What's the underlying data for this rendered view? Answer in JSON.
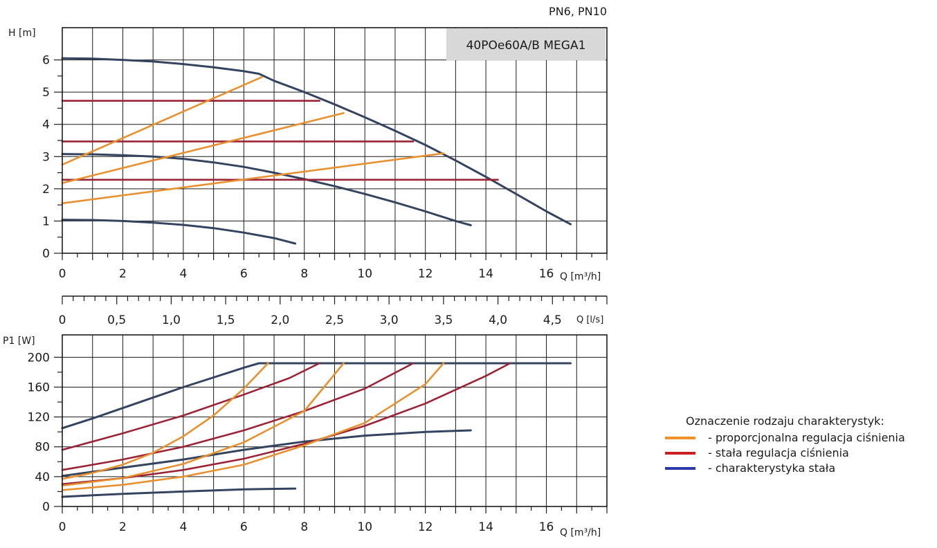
{
  "header": {
    "pressure_class": "PN6, PN10",
    "model": "40POe60A/B MEGA1"
  },
  "colors": {
    "proportional": "#e8902e",
    "constant_pressure": "#9b2335",
    "constant_speed": "#34445e",
    "legend_proportional": "#f0902a",
    "legend_constant_pressure": "#cc1f1f",
    "legend_constant_speed": "#2a3aa8",
    "grid": "#1a1a1a",
    "model_box": "#d8d8d8"
  },
  "legend": {
    "title": "Oznaczenie rodzaju charakterystyk:",
    "items": [
      {
        "key": "proportional",
        "label": "- proporcjonalna regulacja ciśnienia"
      },
      {
        "key": "constant_pressure",
        "label": "- stała regulacja ciśnienia"
      },
      {
        "key": "constant_speed",
        "label": "- charakterystyka stała"
      }
    ]
  },
  "chart_data": [
    {
      "type": "line",
      "title": "",
      "xlabel": "Q [m³/h]",
      "ylabel": "H [m]",
      "xlim": [
        0,
        18
      ],
      "ylim": [
        0,
        7
      ],
      "x_ticks": [
        "0",
        "2",
        "4",
        "6",
        "8",
        "10",
        "12",
        "14",
        "16"
      ],
      "y_ticks": [
        "0",
        "1",
        "2",
        "3",
        "4",
        "5",
        "6"
      ],
      "grid": true,
      "series": [
        {
          "kind": "constant_speed",
          "points": [
            [
              0,
              6.05
            ],
            [
              1,
              6.04
            ],
            [
              2,
              6.0
            ],
            [
              3,
              5.95
            ],
            [
              4,
              5.87
            ],
            [
              5,
              5.77
            ],
            [
              6,
              5.65
            ],
            [
              6.5,
              5.57
            ],
            [
              7,
              5.35
            ],
            [
              8,
              5.0
            ],
            [
              9,
              4.62
            ],
            [
              10,
              4.22
            ],
            [
              11,
              3.8
            ],
            [
              12,
              3.36
            ],
            [
              13,
              2.88
            ],
            [
              14,
              2.37
            ],
            [
              15,
              1.84
            ],
            [
              16,
              1.3
            ],
            [
              16.8,
              0.9
            ]
          ]
        },
        {
          "kind": "constant_speed",
          "points": [
            [
              0,
              3.08
            ],
            [
              1,
              3.07
            ],
            [
              2,
              3.04
            ],
            [
              3,
              3.0
            ],
            [
              4,
              2.93
            ],
            [
              5,
              2.82
            ],
            [
              6,
              2.68
            ],
            [
              7,
              2.5
            ],
            [
              8,
              2.3
            ],
            [
              9,
              2.08
            ],
            [
              10,
              1.84
            ],
            [
              11,
              1.58
            ],
            [
              12,
              1.3
            ],
            [
              13,
              1.0
            ],
            [
              13.5,
              0.87
            ]
          ]
        },
        {
          "kind": "constant_speed",
          "points": [
            [
              0,
              1.04
            ],
            [
              1,
              1.03
            ],
            [
              2,
              1.0
            ],
            [
              3,
              0.95
            ],
            [
              4,
              0.88
            ],
            [
              5,
              0.78
            ],
            [
              6,
              0.64
            ],
            [
              7,
              0.47
            ],
            [
              7.7,
              0.3
            ]
          ]
        },
        {
          "kind": "constant_pressure",
          "points": [
            [
              0,
              4.73
            ],
            [
              8.5,
              4.73
            ]
          ]
        },
        {
          "kind": "constant_pressure",
          "points": [
            [
              0,
              3.47
            ],
            [
              11.6,
              3.47
            ]
          ]
        },
        {
          "kind": "constant_pressure",
          "points": [
            [
              0,
              2.28
            ],
            [
              14.4,
              2.28
            ]
          ]
        },
        {
          "kind": "proportional",
          "points": [
            [
              0,
              2.75
            ],
            [
              6.6,
              5.47
            ]
          ]
        },
        {
          "kind": "proportional",
          "points": [
            [
              0,
              2.18
            ],
            [
              9.3,
              4.35
            ]
          ]
        },
        {
          "kind": "proportional",
          "points": [
            [
              0,
              1.55
            ],
            [
              12.6,
              3.1
            ]
          ]
        }
      ]
    },
    {
      "type": "axis",
      "xlabel": "Q [l/s]",
      "xlim": [
        0,
        5
      ],
      "x_ticks": [
        "0",
        "0,5",
        "1,0",
        "1,5",
        "2,0",
        "2,5",
        "3,0",
        "3,5",
        "4,0",
        "4,5"
      ]
    },
    {
      "type": "line",
      "title": "",
      "xlabel": "Q [m³/h]",
      "ylabel": "P1 [W]",
      "xlim": [
        0,
        18
      ],
      "ylim": [
        0,
        230
      ],
      "x_ticks": [
        "0",
        "2",
        "4",
        "6",
        "8",
        "10",
        "12",
        "14",
        "16"
      ],
      "y_ticks": [
        "0",
        "40",
        "80",
        "120",
        "160",
        "200"
      ],
      "grid": true,
      "series": [
        {
          "kind": "constant_speed",
          "points": [
            [
              0,
              105
            ],
            [
              1,
              118
            ],
            [
              2,
              132
            ],
            [
              3,
              146
            ],
            [
              4,
              160
            ],
            [
              5,
              173
            ],
            [
              6,
              186
            ],
            [
              6.5,
              192
            ],
            [
              16.8,
              192
            ]
          ]
        },
        {
          "kind": "constant_speed",
          "points": [
            [
              0,
              41
            ],
            [
              2,
              52
            ],
            [
              4,
              63
            ],
            [
              6,
              76
            ],
            [
              8,
              87
            ],
            [
              10,
              95
            ],
            [
              12,
              100
            ],
            [
              13.5,
              102
            ]
          ]
        },
        {
          "kind": "constant_speed",
          "points": [
            [
              0,
              13
            ],
            [
              2,
              17
            ],
            [
              4,
              20
            ],
            [
              6,
              23
            ],
            [
              7.7,
              24
            ]
          ]
        },
        {
          "kind": "constant_pressure",
          "points": [
            [
              0,
              76
            ],
            [
              2,
              98
            ],
            [
              4,
              122
            ],
            [
              6,
              150
            ],
            [
              7.5,
              172
            ],
            [
              8.5,
              192
            ]
          ]
        },
        {
          "kind": "constant_pressure",
          "points": [
            [
              0,
              49
            ],
            [
              2,
              63
            ],
            [
              4,
              80
            ],
            [
              6,
              102
            ],
            [
              8,
              128
            ],
            [
              10,
              158
            ],
            [
              11.6,
              192
            ]
          ]
        },
        {
          "kind": "constant_pressure",
          "points": [
            [
              0,
              30
            ],
            [
              2,
              38
            ],
            [
              4,
              49
            ],
            [
              6,
              64
            ],
            [
              8,
              84
            ],
            [
              10,
              108
            ],
            [
              12,
              138
            ],
            [
              14,
              175
            ],
            [
              14.8,
              192
            ]
          ]
        },
        {
          "kind": "proportional",
          "points": [
            [
              0,
              37
            ],
            [
              1,
              45
            ],
            [
              2,
              56
            ],
            [
              3,
              72
            ],
            [
              4,
              94
            ],
            [
              5,
              122
            ],
            [
              6,
              158
            ],
            [
              6.8,
              192
            ]
          ]
        },
        {
          "kind": "proportional",
          "points": [
            [
              0,
              28
            ],
            [
              2,
              38
            ],
            [
              4,
              57
            ],
            [
              6,
              86
            ],
            [
              8,
              128
            ],
            [
              9.3,
              192
            ]
          ]
        },
        {
          "kind": "proportional",
          "points": [
            [
              0,
              22
            ],
            [
              2,
              29
            ],
            [
              4,
              40
            ],
            [
              6,
              56
            ],
            [
              8,
              82
            ],
            [
              10,
              112
            ],
            [
              12,
              164
            ],
            [
              12.6,
              192
            ]
          ]
        }
      ]
    }
  ]
}
